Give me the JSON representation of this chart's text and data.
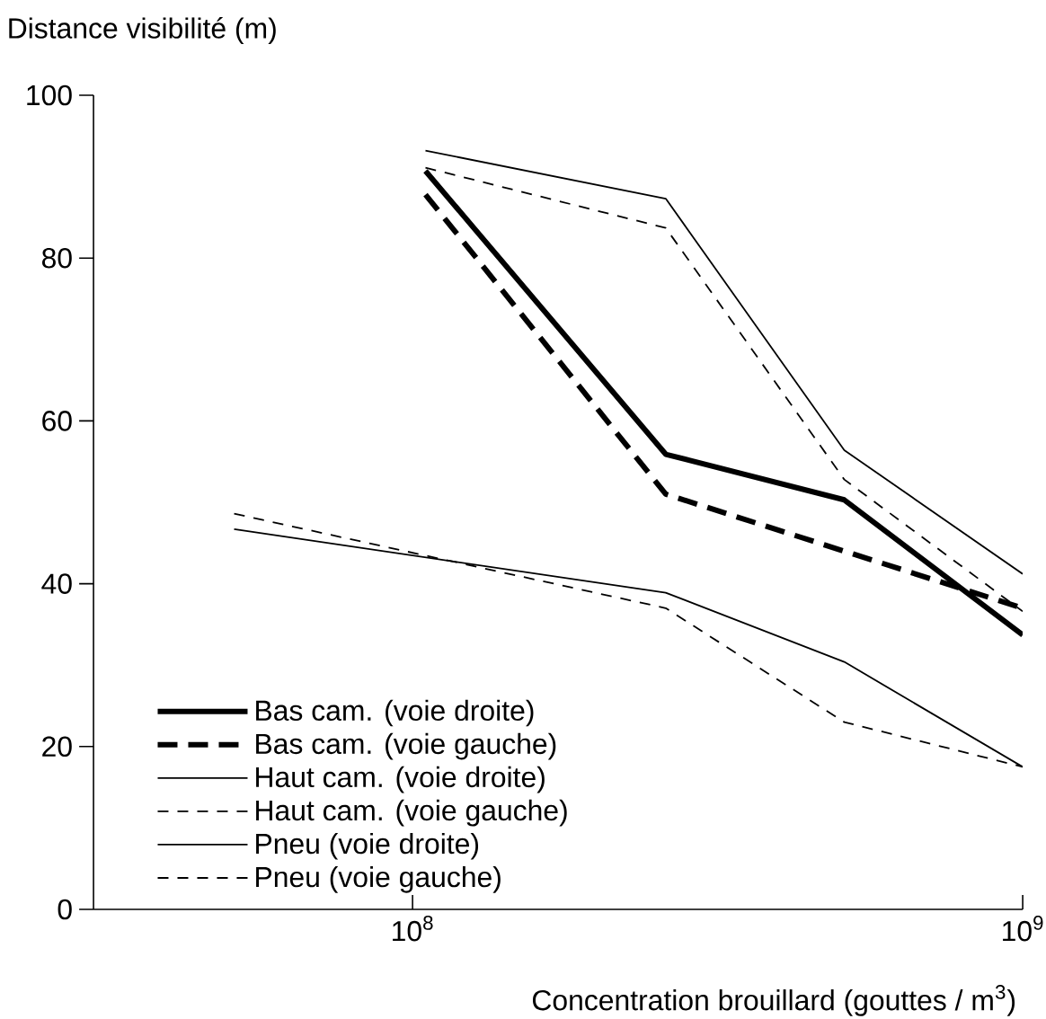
{
  "chart_data": {
    "type": "line",
    "xlabel": "Concentration brouillard (gouttes / m$^{3}$)",
    "ylabel": "Distance visibilité (m)",
    "log": "x",
    "xlim": [
      30000000,
      1000000000
    ],
    "xticks": [
      {
        "value": 100000000,
        "label": "10$^{8}$"
      },
      {
        "value": 1000000000,
        "label": "10$^{9}$"
      }
    ],
    "ylim": [
      0,
      100
    ],
    "yticks": [
      0,
      20,
      40,
      60,
      80,
      100
    ],
    "legend": "bottom left",
    "grid": false,
    "series": [
      {
        "name": "Bas cam. (voie droite)",
        "color": "#000000",
        "line_style": "solid",
        "x": [
          105000000,
          260000000,
          510000000,
          1000000000
        ],
        "values": [
          90.7,
          55.9,
          50.3,
          33.7
        ]
      },
      {
        "name": "Bas cam. (voie gauche)",
        "color": "#000000",
        "line_style": "dashed",
        "x": [
          105000000,
          260000000,
          510000000,
          1000000000
        ],
        "values": [
          87.8,
          51.0,
          44.0,
          37.0
        ]
      },
      {
        "name": "Haut cam. (voie droite)",
        "color": "#000000",
        "line_style": "solid",
        "x": [
          105000000,
          260000000,
          510000000,
          1000000000
        ],
        "values": [
          93.2,
          87.3,
          56.4,
          41.2
        ]
      },
      {
        "name": "Haut cam. (voie gauche)",
        "color": "#000000",
        "line_style": "dashed",
        "x": [
          105000000,
          260000000,
          510000000,
          1000000000
        ],
        "values": [
          91.1,
          83.7,
          52.8,
          36.6
        ]
      },
      {
        "name": "Pneu (voie droite)",
        "color": "#000000",
        "line_style": "solid",
        "x": [
          51000000,
          260000000,
          510000000,
          1000000000
        ],
        "values": [
          46.7,
          38.9,
          30.4,
          17.5
        ]
      },
      {
        "name": "Pneu (voie gauche)",
        "color": "#000000",
        "line_style": "dashed",
        "x": [
          51000000,
          260000000,
          510000000,
          1000000000
        ],
        "values": [
          48.6,
          37.0,
          23.0,
          17.5
        ]
      }
    ]
  }
}
